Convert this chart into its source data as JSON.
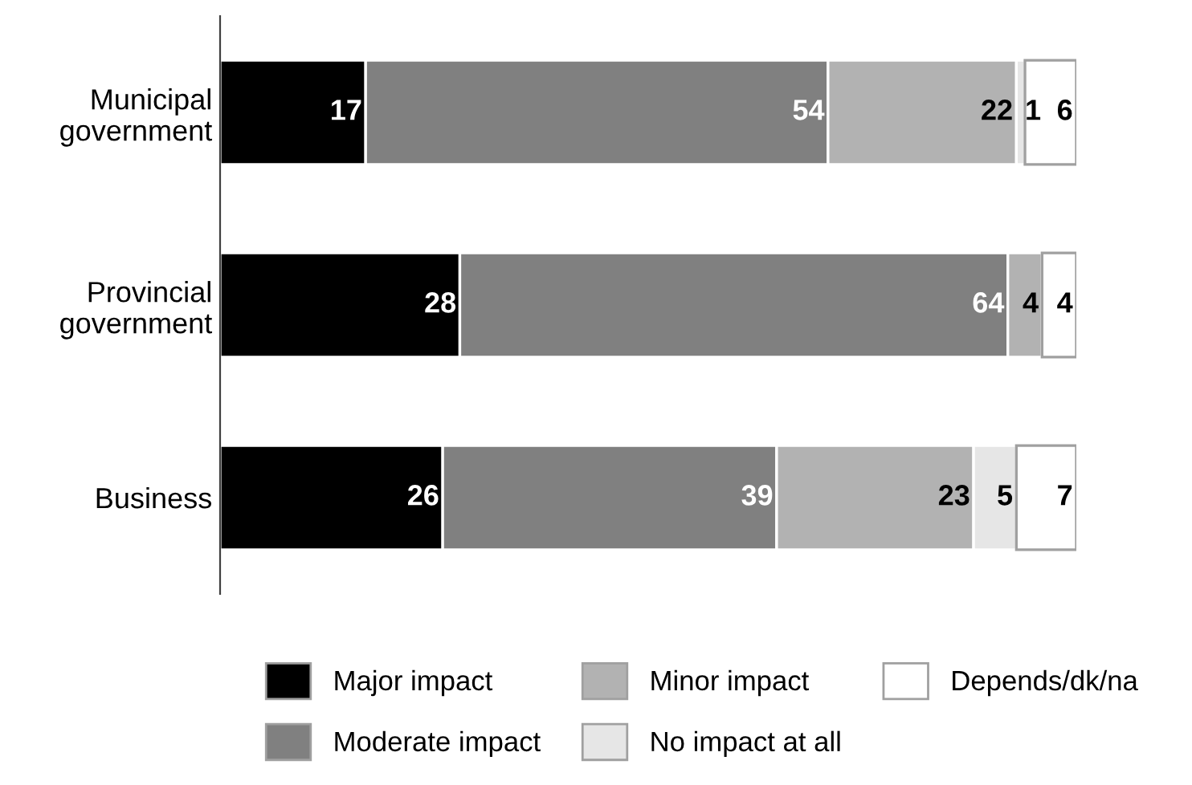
{
  "chart_data": {
    "type": "bar",
    "orientation": "horizontal",
    "stacked": true,
    "categories": [
      "Municipal\ngovernment",
      "Provincial\ngovernment",
      "Business"
    ],
    "series": [
      {
        "name": "Major impact",
        "color": "#000000",
        "values": [
          17,
          28,
          26
        ],
        "value_labels": [
          "17",
          "28",
          "26"
        ]
      },
      {
        "name": "Moderate impact",
        "color": "#808080",
        "values": [
          54,
          64,
          39
        ],
        "value_labels": [
          "54",
          "64",
          "39"
        ]
      },
      {
        "name": "Minor impact",
        "color": "#b2b2b2",
        "values": [
          22,
          4,
          23
        ],
        "value_labels": [
          "22",
          "4",
          "23"
        ]
      },
      {
        "name": "No impact at all",
        "color": "#e6e6e6",
        "values": [
          1,
          0,
          5
        ],
        "value_labels": [
          "1",
          null,
          "5"
        ]
      },
      {
        "name": "Depends/dk/na",
        "color": "#ffffff",
        "values": [
          6,
          4,
          7
        ],
        "value_labels": [
          "6",
          "4",
          "7"
        ]
      }
    ],
    "legend": "bottom",
    "grid": false
  }
}
